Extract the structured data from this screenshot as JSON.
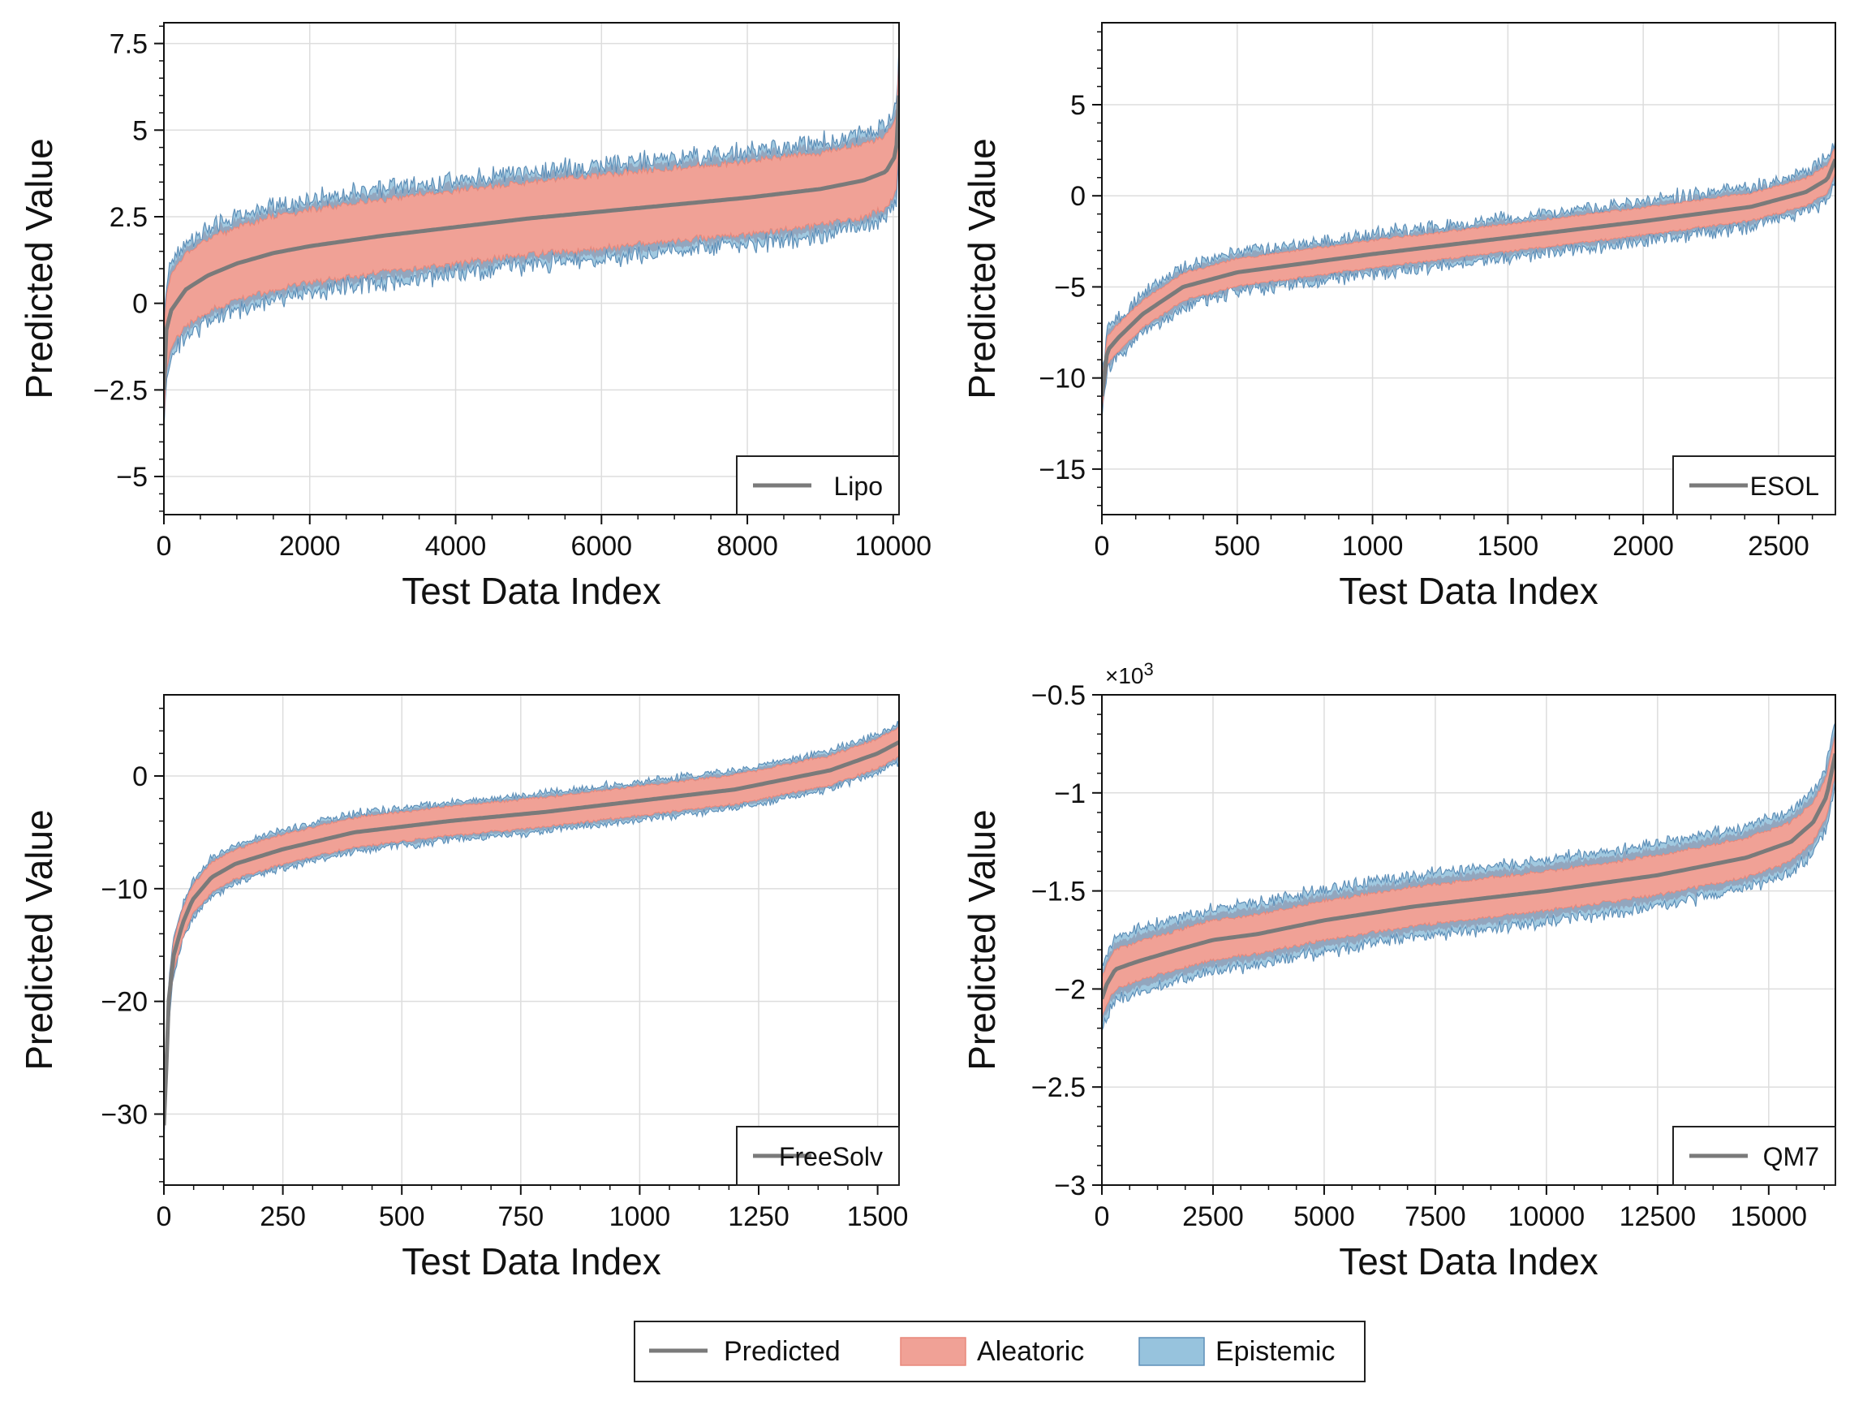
{
  "figure_legend": {
    "items": [
      {
        "label": "Predicted",
        "kind": "line",
        "color": "#7a7a7a"
      },
      {
        "label": "Aleatoric",
        "kind": "patch",
        "color": "#f0a196"
      },
      {
        "label": "Epistemic",
        "kind": "patch",
        "color": "#97c3dd"
      }
    ]
  },
  "colors": {
    "predicted": "#7a7a7a",
    "aleatoric": "#f0a196",
    "epistemic": "#97c3dd",
    "epistemic_edge": "#5e8fb8",
    "aleatoric_edge": "#e8877a",
    "grid": "#dddddd"
  },
  "chart_data": [
    {
      "type": "area",
      "panel": "Lipo",
      "title": "",
      "xlabel": "Test Data Index",
      "ylabel": "Predicted Value",
      "xlim": [
        0,
        10080
      ],
      "ylim": [
        -6.1,
        8.1
      ],
      "xticks": [
        0,
        2000,
        4000,
        6000,
        8000,
        10000
      ],
      "xtick_labels": [
        "0",
        "2000",
        "4000",
        "6000",
        "8000",
        "10000"
      ],
      "yticks": [
        -5,
        -2.5,
        0,
        2.5,
        5,
        7.5
      ],
      "ytick_labels": [
        "−5",
        "−2.5",
        "0",
        "2.5",
        "5",
        "7.5"
      ],
      "legend": "Lipo",
      "legend_position": "bottom-right",
      "grid": true,
      "series": [
        {
          "name": "Predicted",
          "x": [
            0,
            30,
            100,
            300,
            600,
            1000,
            1500,
            2000,
            3000,
            4000,
            5000,
            6000,
            7000,
            8000,
            9000,
            9600,
            9900,
            10040,
            10080
          ],
          "values": [
            -2.5,
            -0.8,
            -0.2,
            0.4,
            0.8,
            1.15,
            1.45,
            1.65,
            1.95,
            2.2,
            2.45,
            2.65,
            2.85,
            3.05,
            3.3,
            3.55,
            3.8,
            4.3,
            6.0
          ]
        },
        {
          "name": "Aleatoric",
          "half_width": 1.05
        },
        {
          "name": "Epistemic",
          "half_width": 1.35,
          "noise": 0.35
        }
      ]
    },
    {
      "type": "area",
      "panel": "ESOL",
      "title": "",
      "xlabel": "Test Data Index",
      "ylabel": "Predicted Value",
      "xlim": [
        0,
        2710
      ],
      "ylim": [
        -17.5,
        9.5
      ],
      "xticks": [
        0,
        500,
        1000,
        1500,
        2000,
        2500
      ],
      "xtick_labels": [
        "0",
        "500",
        "1000",
        "1500",
        "2000",
        "2500"
      ],
      "yticks": [
        -15,
        -10,
        -5,
        0,
        5
      ],
      "ytick_labels": [
        "−15",
        "−10",
        "−5",
        "0",
        "5"
      ],
      "legend": "ESOL",
      "legend_position": "bottom-right",
      "grid": true,
      "series": [
        {
          "name": "Predicted",
          "x": [
            0,
            20,
            60,
            150,
            300,
            500,
            800,
            1000,
            1500,
            2000,
            2400,
            2600,
            2680,
            2710
          ],
          "values": [
            -11.0,
            -8.5,
            -7.8,
            -6.5,
            -5.0,
            -4.2,
            -3.6,
            -3.2,
            -2.3,
            -1.4,
            -0.6,
            0.2,
            0.9,
            2.0
          ]
        },
        {
          "name": "Aleatoric",
          "half_width": 0.75
        },
        {
          "name": "Epistemic",
          "half_width": 1.1,
          "noise": 0.5
        }
      ]
    },
    {
      "type": "area",
      "panel": "FreeSolv",
      "title": "",
      "xlabel": "Test Data Index",
      "ylabel": "Predicted Value",
      "xlim": [
        0,
        1545
      ],
      "ylim": [
        -36.3,
        7.2
      ],
      "xticks": [
        0,
        250,
        500,
        750,
        1000,
        1250,
        1500
      ],
      "xtick_labels": [
        "0",
        "250",
        "500",
        "750",
        "1000",
        "1250",
        "1500"
      ],
      "yticks": [
        -30,
        -20,
        -10,
        0
      ],
      "ytick_labels": [
        "−30",
        "−20",
        "−10",
        "0"
      ],
      "legend": "FreeSolv",
      "legend_position": "bottom-right",
      "grid": true,
      "series": [
        {
          "name": "Predicted",
          "x": [
            0,
            5,
            10,
            20,
            40,
            60,
            100,
            150,
            250,
            400,
            600,
            800,
            1000,
            1200,
            1400,
            1500,
            1545
          ],
          "values": [
            -31.0,
            -26.0,
            -20.0,
            -16.0,
            -13.0,
            -11.0,
            -9.0,
            -7.8,
            -6.5,
            -5.0,
            -4.0,
            -3.2,
            -2.2,
            -1.2,
            0.5,
            2.0,
            3.0
          ]
        },
        {
          "name": "Aleatoric",
          "half_width": 1.3
        },
        {
          "name": "Epistemic",
          "half_width": 1.7,
          "noise": 0.45
        }
      ]
    },
    {
      "type": "area",
      "panel": "QM7",
      "title": "",
      "xlabel": "Test Data Index",
      "ylabel": "Predicted Value",
      "multiplier": "×10",
      "multiplier_exp": "3",
      "xlim": [
        0,
        16500
      ],
      "ylim": [
        -3.0,
        -0.5
      ],
      "xticks": [
        0,
        2500,
        5000,
        7500,
        10000,
        12500,
        15000
      ],
      "xtick_labels": [
        "0",
        "2500",
        "5000",
        "7500",
        "10000",
        "12500",
        "15000"
      ],
      "yticks": [
        -3,
        -2.5,
        -2,
        -1.5,
        -1,
        -0.5
      ],
      "ytick_labels": [
        "−3",
        "−2.5",
        "−2",
        "−1.5",
        "−1",
        "−0.5"
      ],
      "legend": "QM7",
      "legend_position": "bottom-right",
      "grid": true,
      "series": [
        {
          "name": "Predicted",
          "x": [
            0,
            100,
            300,
            800,
            1700,
            2500,
            3500,
            5000,
            7000,
            10000,
            12500,
            14500,
            15500,
            16000,
            16300,
            16500
          ],
          "values": [
            -2.05,
            -1.98,
            -1.9,
            -1.86,
            -1.8,
            -1.75,
            -1.72,
            -1.65,
            -1.58,
            -1.5,
            -1.42,
            -1.33,
            -1.25,
            -1.15,
            -1.02,
            -0.8
          ]
        },
        {
          "name": "Aleatoric",
          "half_width": 0.1
        },
        {
          "name": "Epistemic",
          "half_width": 0.16,
          "noise": 0.04
        }
      ]
    }
  ]
}
